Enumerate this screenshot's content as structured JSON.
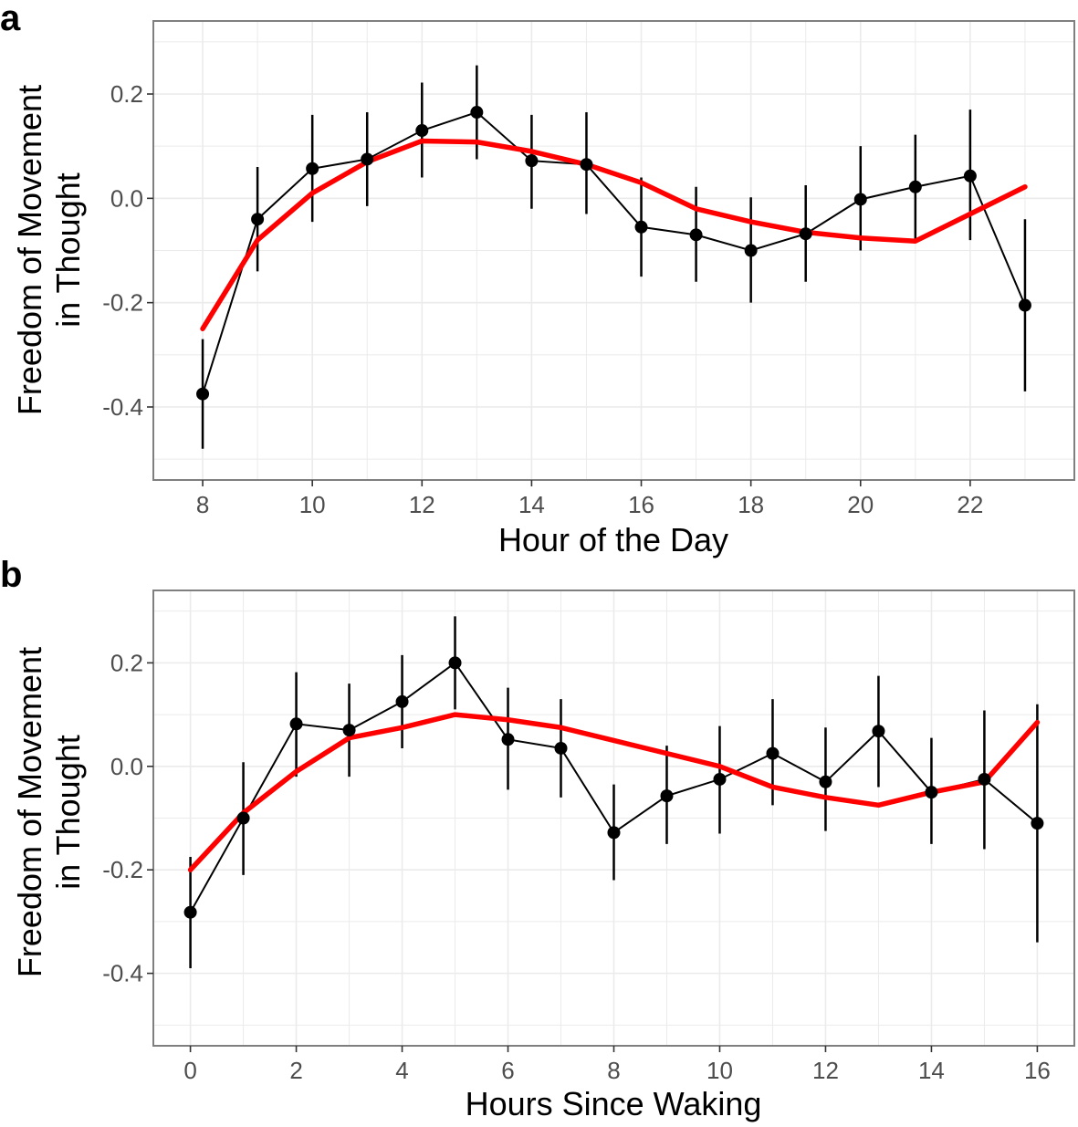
{
  "colors": {
    "trend": "#ff0000",
    "observed": "#000000",
    "grid": "#ebebeb",
    "border": "#7f7f7f",
    "tick_text": "#4d4d4d"
  },
  "chart_data": [
    {
      "panel": "a",
      "type": "line",
      "xlabel": "Hour of the Day",
      "ylabel_lines": [
        "Freedom of Movement",
        "in Thought"
      ],
      "xlim": [
        7.1,
        23.9
      ],
      "ylim": [
        -0.54,
        0.34
      ],
      "xticks": [
        8,
        10,
        12,
        14,
        16,
        18,
        20,
        22
      ],
      "yticks": [
        -0.4,
        -0.2,
        0.0,
        0.2
      ],
      "ytick_labels": [
        "-0.4",
        "-0.2",
        "0.0",
        "0.2"
      ],
      "series": [
        {
          "name": "observed",
          "kind": "points_with_errorbars",
          "x": [
            8,
            9,
            10,
            11,
            12,
            13,
            14,
            15,
            16,
            17,
            18,
            19,
            20,
            21,
            22,
            23
          ],
          "y": [
            -0.375,
            -0.04,
            0.057,
            0.075,
            0.13,
            0.165,
            0.072,
            0.065,
            -0.055,
            -0.07,
            -0.1,
            -0.068,
            -0.002,
            0.022,
            0.043,
            -0.205
          ],
          "ymin": [
            -0.48,
            -0.14,
            -0.045,
            -0.015,
            0.04,
            0.075,
            -0.02,
            -0.03,
            -0.15,
            -0.16,
            -0.2,
            -0.16,
            -0.1,
            -0.08,
            -0.08,
            -0.37
          ],
          "ymax": [
            -0.27,
            0.06,
            0.16,
            0.165,
            0.222,
            0.255,
            0.16,
            0.165,
            0.04,
            0.022,
            0.002,
            0.025,
            0.1,
            0.122,
            0.17,
            -0.04
          ]
        },
        {
          "name": "trend",
          "kind": "line",
          "x": [
            8,
            9,
            10,
            11,
            12,
            13,
            14,
            15,
            16,
            17,
            18,
            19,
            20,
            21,
            22,
            23
          ],
          "y": [
            -0.25,
            -0.08,
            0.01,
            0.07,
            0.11,
            0.108,
            0.09,
            0.065,
            0.03,
            -0.02,
            -0.045,
            -0.065,
            -0.076,
            -0.082,
            -0.03,
            0.022
          ]
        }
      ]
    },
    {
      "panel": "b",
      "type": "line",
      "xlabel": "Hours Since Waking",
      "ylabel_lines": [
        "Freedom of Movement",
        "in Thought"
      ],
      "xlim": [
        -0.7,
        16.7
      ],
      "ylim": [
        -0.54,
        0.34
      ],
      "xticks": [
        0,
        2,
        4,
        6,
        8,
        10,
        12,
        14,
        16
      ],
      "yticks": [
        -0.4,
        -0.2,
        0.0,
        0.2
      ],
      "ytick_labels": [
        "-0.4",
        "-0.2",
        "0.0",
        "0.2"
      ],
      "series": [
        {
          "name": "observed",
          "kind": "points_with_errorbars",
          "x": [
            0,
            1,
            2,
            3,
            4,
            5,
            6,
            7,
            8,
            9,
            10,
            11,
            12,
            13,
            14,
            15,
            16
          ],
          "y": [
            -0.282,
            -0.1,
            0.082,
            0.07,
            0.125,
            0.2,
            0.052,
            0.035,
            -0.128,
            -0.057,
            -0.025,
            0.025,
            -0.03,
            0.068,
            -0.05,
            -0.025,
            -0.11
          ],
          "ymin": [
            -0.39,
            -0.21,
            -0.02,
            -0.02,
            0.035,
            0.11,
            -0.045,
            -0.06,
            -0.22,
            -0.15,
            -0.13,
            -0.075,
            -0.125,
            -0.04,
            -0.15,
            -0.16,
            -0.34
          ],
          "ymax": [
            -0.175,
            0.008,
            0.182,
            0.16,
            0.215,
            0.29,
            0.152,
            0.13,
            -0.035,
            0.04,
            0.078,
            0.13,
            0.075,
            0.175,
            0.055,
            0.108,
            0.12
          ]
        },
        {
          "name": "trend",
          "kind": "line",
          "x": [
            0,
            1,
            2,
            3,
            4,
            5,
            6,
            7,
            8,
            9,
            10,
            11,
            12,
            13,
            14,
            15,
            16
          ],
          "y": [
            -0.2,
            -0.09,
            -0.01,
            0.055,
            0.075,
            0.1,
            0.09,
            0.075,
            0.05,
            0.025,
            0.0,
            -0.04,
            -0.06,
            -0.075,
            -0.05,
            -0.03,
            0.085
          ]
        }
      ]
    }
  ]
}
